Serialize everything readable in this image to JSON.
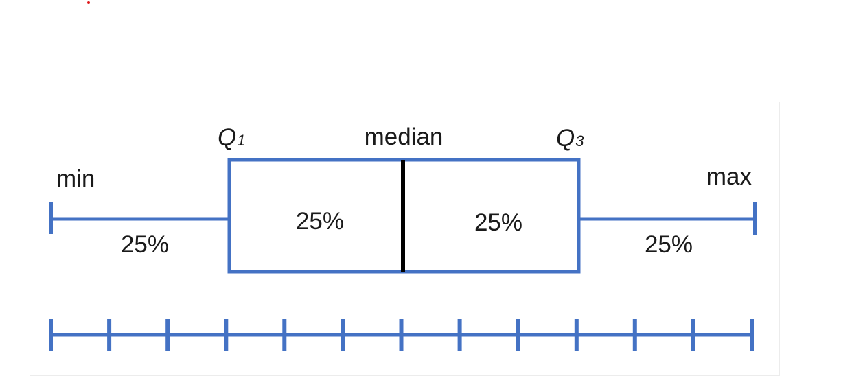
{
  "diagram": {
    "title": "",
    "colors": {
      "stroke": "#4472c4",
      "median_line": "#000000",
      "text": "#1a1a1a",
      "marker_dot": "#e0191b"
    },
    "labels": {
      "min": "min",
      "max": "max",
      "median": "median",
      "q1_letter": "Q",
      "q1_sub": "1",
      "q3_letter": "Q",
      "q3_sub": "3"
    },
    "sections": [
      {
        "name": "lower-whisker",
        "label": "25%"
      },
      {
        "name": "lower-box",
        "label": "25%"
      },
      {
        "name": "upper-box",
        "label": "25%"
      },
      {
        "name": "upper-whisker",
        "label": "25%"
      }
    ],
    "scale": {
      "tick_count": 13
    }
  }
}
